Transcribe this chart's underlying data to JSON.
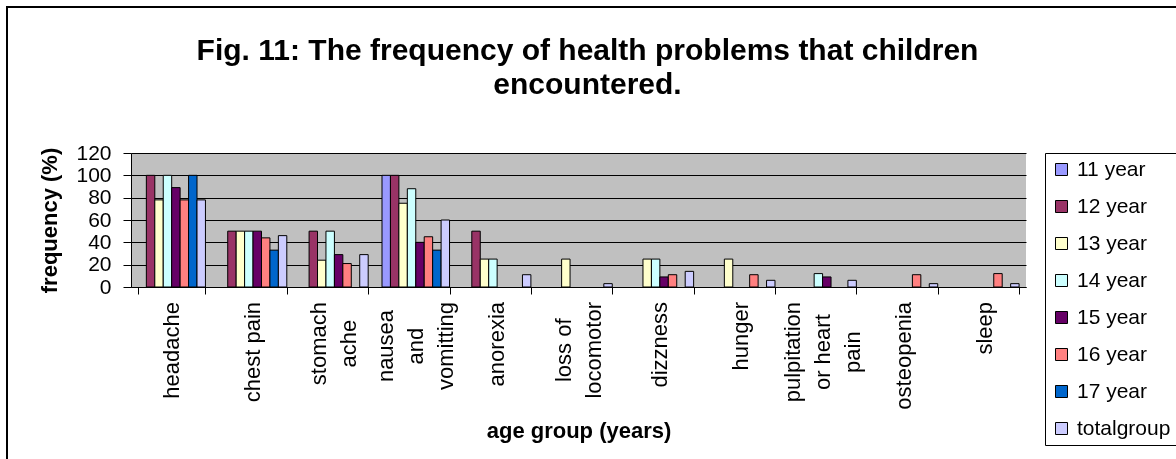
{
  "chart_data": {
    "type": "bar",
    "title": "Fig. 11: The frequency of health problems that children encountered.",
    "xlabel": "age group (years)",
    "ylabel": "frequency (%)",
    "categories": [
      "headache",
      "chest pain",
      "stomach ache",
      "nausea and vomitting",
      "anorexia",
      "loss of locomotor",
      "dizzness",
      "hunger",
      "pulpitation or heart pain",
      "osteopenia",
      "sleep"
    ],
    "series": [
      {
        "name": "11 year",
        "color": "#9999ff",
        "values": [
          null,
          null,
          null,
          100,
          null,
          null,
          null,
          null,
          null,
          null,
          null
        ]
      },
      {
        "name": "12 year",
        "color": "#993366",
        "values": [
          100,
          50,
          50,
          100,
          50,
          null,
          null,
          null,
          null,
          null,
          null
        ]
      },
      {
        "name": "13 year",
        "color": "#ffffcc",
        "values": [
          78,
          50,
          24,
          75,
          25,
          25,
          25,
          25,
          null,
          null,
          null
        ]
      },
      {
        "name": "14 year",
        "color": "#ccffff",
        "values": [
          100,
          50,
          50,
          88,
          25,
          null,
          25,
          null,
          12,
          null,
          null
        ]
      },
      {
        "name": "15 year",
        "color": "#660066",
        "values": [
          89,
          50,
          29,
          40,
          null,
          null,
          9,
          null,
          9,
          null,
          null
        ]
      },
      {
        "name": "16 year",
        "color": "#ff8080",
        "values": [
          78,
          44,
          21,
          45,
          null,
          null,
          11,
          11,
          null,
          11,
          12
        ]
      },
      {
        "name": "17 year",
        "color": "#0066cc",
        "values": [
          100,
          33,
          null,
          33,
          null,
          null,
          null,
          null,
          null,
          null,
          null
        ]
      },
      {
        "name": "totalgroup",
        "color": "#ccccff",
        "values": [
          78,
          46,
          29,
          60,
          11,
          3,
          14,
          6,
          6,
          3,
          3
        ]
      }
    ],
    "ylim": [
      0,
      120
    ],
    "yticks": [
      0,
      20,
      40,
      60,
      80,
      100,
      120
    ],
    "grid": "y",
    "legend": "right"
  }
}
